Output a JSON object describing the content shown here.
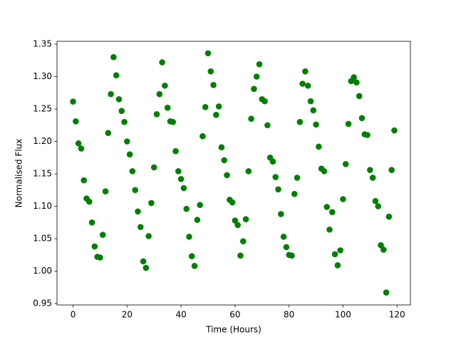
{
  "chart_data": {
    "type": "scatter",
    "xlabel": "Time (Hours)",
    "ylabel": "Normalised Flux",
    "color": "#008000",
    "x": [
      0,
      1,
      2,
      3,
      4,
      5,
      6,
      7,
      8,
      9,
      10,
      11,
      12,
      13,
      14,
      15,
      16,
      17,
      18,
      19,
      20,
      21,
      22,
      23,
      24,
      25,
      26,
      27,
      28,
      29,
      30,
      31,
      32,
      33,
      34,
      35,
      36,
      37,
      38,
      39,
      40,
      41,
      42,
      43,
      44,
      45,
      46,
      47,
      48,
      49,
      50,
      51,
      52,
      53,
      54,
      55,
      56,
      57,
      58,
      59,
      60,
      61,
      62,
      63,
      64,
      65,
      66,
      67,
      68,
      69,
      70,
      71,
      72,
      73,
      74,
      75,
      76,
      77,
      78,
      79,
      80,
      81,
      82,
      83,
      84,
      85,
      86,
      87,
      88,
      89,
      90,
      91,
      92,
      93,
      94,
      95,
      96,
      97,
      98,
      99,
      100,
      101,
      102,
      103,
      104,
      105,
      106,
      107,
      108,
      109,
      110,
      111,
      112,
      113,
      114,
      115,
      116,
      117,
      118,
      119
    ],
    "values": [
      1.2615,
      1.231,
      1.197,
      1.189,
      1.14,
      1.112,
      1.107,
      1.075,
      1.038,
      1.022,
      1.021,
      1.056,
      1.123,
      1.213,
      1.273,
      1.33,
      1.302,
      1.265,
      1.247,
      1.23,
      1.2,
      1.18,
      1.154,
      1.125,
      1.092,
      1.068,
      1.015,
      1.005,
      1.054,
      1.105,
      1.16,
      1.242,
      1.273,
      1.322,
      1.286,
      1.252,
      1.231,
      1.23,
      1.185,
      1.154,
      1.142,
      1.128,
      1.096,
      1.053,
      1.023,
      1.008,
      1.079,
      1.102,
      1.208,
      1.253,
      1.336,
      1.308,
      1.287,
      1.241,
      1.254,
      1.191,
      1.171,
      1.148,
      1.11,
      1.106,
      1.078,
      1.071,
      1.024,
      1.046,
      1.08,
      1.154,
      1.235,
      1.281,
      1.3,
      1.319,
      1.265,
      1.262,
      1.225,
      1.175,
      1.169,
      1.145,
      1.126,
      1.088,
      1.053,
      1.037,
      1.025,
      1.024,
      1.119,
      1.144,
      1.23,
      1.289,
      1.308,
      1.286,
      1.262,
      1.248,
      1.226,
      1.192,
      1.158,
      1.154,
      1.099,
      1.064,
      1.091,
      1.026,
      1.009,
      1.032,
      1.111,
      1.165,
      1.227,
      1.293,
      1.299,
      1.291,
      1.27,
      1.236,
      1.211,
      1.21,
      1.156,
      1.144,
      1.108,
      1.1,
      1.04,
      1.033,
      0.967,
      1.084,
      1.156,
      1.217
    ],
    "xlim": [
      -5.95,
      124.95
    ],
    "ylim": [
      0.9478,
      1.3544
    ],
    "xticks": [
      0,
      20,
      40,
      60,
      80,
      100,
      120
    ],
    "yticks": [
      0.95,
      {
        "value": 1,
        "label": "1.00"
      },
      1.05,
      {
        "value": 1.1,
        "label": "1.10"
      },
      1.15,
      {
        "value": 1.2,
        "label": "1.20"
      },
      1.25,
      {
        "value": 1.3,
        "label": "1.30"
      },
      1.35
    ],
    "grid": false
  }
}
